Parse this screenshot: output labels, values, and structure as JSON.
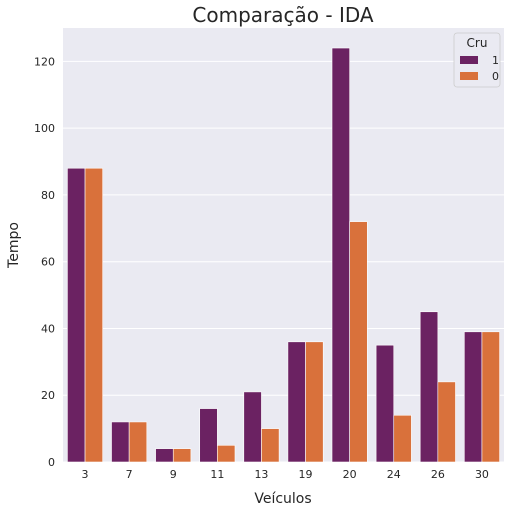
{
  "chart_data": {
    "type": "bar",
    "title": "Comparação - IDA",
    "xlabel": "Veículos",
    "ylabel": "Tempo",
    "categories": [
      "3",
      "7",
      "9",
      "11",
      "13",
      "19",
      "20",
      "24",
      "26",
      "30"
    ],
    "series": [
      {
        "name": "1",
        "color": "#6b2262",
        "values": [
          88,
          12,
          4,
          16,
          21,
          36,
          124,
          35,
          45,
          39
        ]
      },
      {
        "name": "0",
        "color": "#d9713b",
        "values": [
          88,
          12,
          4,
          5,
          10,
          36,
          72,
          14,
          24,
          39
        ]
      }
    ],
    "ylim": [
      0,
      130
    ],
    "yticks": [
      0,
      20,
      40,
      60,
      80,
      100,
      120
    ],
    "grid": true,
    "legend": {
      "title": "Cru",
      "placement": "top-right"
    },
    "background": "#eaeaf2"
  }
}
